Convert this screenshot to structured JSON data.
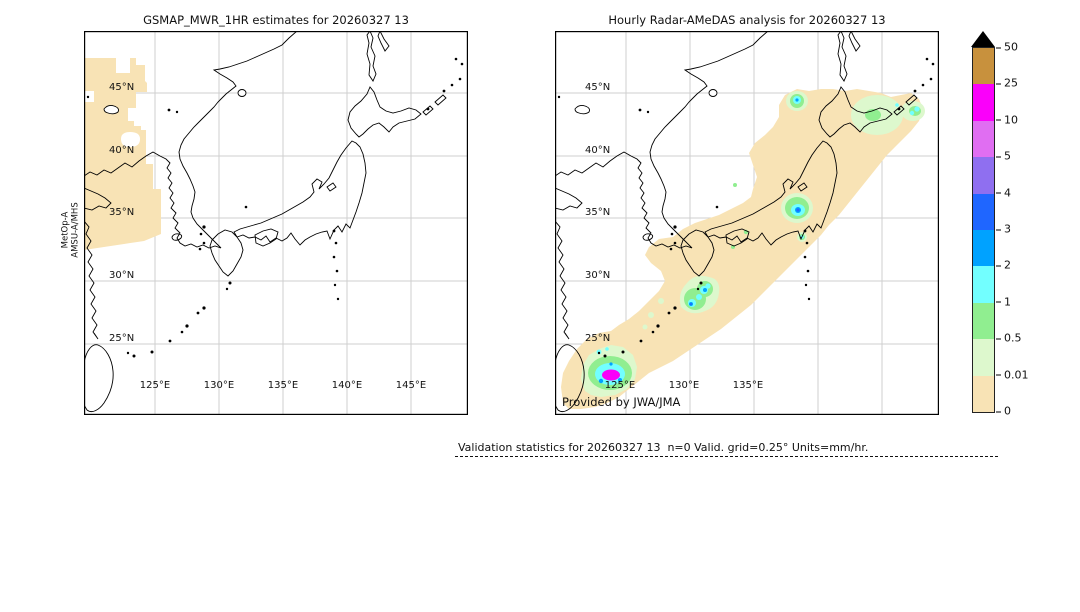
{
  "figure": {
    "left_panel": {
      "title": "GSMAP_MWR_1HR estimates for 20260327 13",
      "sensor_label_line1": "MetOp-A",
      "sensor_label_line2": "AMSU-A/MHS",
      "lat_labels": [
        "45°N",
        "40°N",
        "35°N",
        "30°N",
        "25°N"
      ],
      "lon_labels": [
        "125°E",
        "130°E",
        "135°E",
        "140°E",
        "145°E"
      ]
    },
    "right_panel": {
      "title": "Hourly Radar-AMeDAS analysis for 20260327 13",
      "credit": "Provided by JWA/JMA",
      "lat_labels": [
        "45°N",
        "40°N",
        "35°N",
        "30°N",
        "25°N"
      ],
      "lon_labels": [
        "125°E",
        "130°E",
        "135°E"
      ]
    },
    "colorbar": {
      "tick_labels": [
        "50",
        "25",
        "10",
        "5",
        "4",
        "3",
        "2",
        "1",
        "0.5",
        "0.01",
        "0"
      ],
      "segment_colors_top_to_bottom": [
        "#c8913d",
        "#fa00fa",
        "#e06ef2",
        "#8f6ff0",
        "#1f66ff",
        "#00a2ff",
        "#72ffff",
        "#90ee90",
        "#ddf8cd",
        "#f8e3b5"
      ],
      "overflow_color": "#000000"
    },
    "colors": {
      "swath_tan": "#f8e3b5",
      "pale_green": "#ddf8cd",
      "green": "#90ee90",
      "cyan": "#72ffff",
      "sky": "#00a2ff",
      "blue": "#1f66ff",
      "magenta": "#fa00fa"
    },
    "footer": {
      "text": "Validation statistics for 20260327 13  n=0 Valid. grid=0.25° Units=mm/hr."
    }
  },
  "chart_data": {
    "type": "heatmap",
    "title": "GSMAP MWR vs Radar-AMeDAS hourly precipitation validation, 2026-03-27 13 UTC",
    "units": "mm/hr",
    "colorbar_scale_mm_per_hr": [
      0,
      0.01,
      0.5,
      1,
      2,
      3,
      4,
      5,
      10,
      25,
      50
    ],
    "grid_resolution_deg": 0.25,
    "n_valid_points": 0,
    "panels": [
      {
        "title": "GSMAP_MWR_1HR estimates for 20260327 13",
        "sensor": "MetOp-A AMSU-A/MHS",
        "lon_ticks_deg_e": [
          125,
          130,
          135,
          140,
          145
        ],
        "lat_ticks_deg_n": [
          25,
          30,
          35,
          40,
          45
        ],
        "content": "Satellite swath covering the far-west of the domain (roughly 119.5-127E, 33-49N); entire swath in the 0-0.01 mm/hr class (no precipitation detected)"
      },
      {
        "title": "Hourly Radar-AMeDAS analysis for 20260327 13",
        "source": "JWA/JMA",
        "lon_ticks_deg_e": [
          125,
          130,
          135
        ],
        "lat_ticks_deg_n": [
          25,
          30,
          35,
          40,
          45
        ],
        "content": "Broad 0-0.01 mm/hr band along the Japanese archipelago from Okinawa to east of Hokkaido",
        "cells": [
          {
            "location_approx": "near Okinawa ~124.6E 24.3N",
            "peak_class_mm_hr": "10-25 (magenta core ringed by 1-3)"
          },
          {
            "location_approx": "Amami islands ~128E 29-30N",
            "peak_class_mm_hr": "2-3"
          },
          {
            "location_approx": "Kanto ~139E 35.6N",
            "peak_class_mm_hr": "3-4"
          },
          {
            "location_approx": "west Hokkaido coast ~139.5E 43.5N",
            "peak_class_mm_hr": "2-3"
          },
          {
            "location_approx": "east Hokkaido / Nemuro ~146E 43.5N",
            "peak_class_mm_hr": "1-2"
          },
          {
            "location_approx": "south of Shikoku ~134E 32N",
            "peak_class_mm_hr": "0.5-1"
          }
        ]
      }
    ]
  }
}
